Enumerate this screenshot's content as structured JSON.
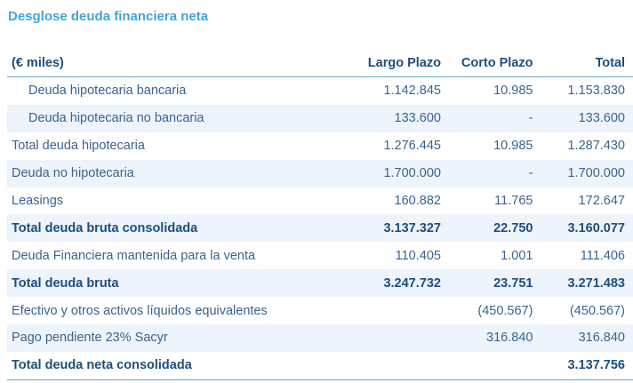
{
  "title": "Desglose deuda financiera neta",
  "headers": [
    "(€ miles)",
    "Largo Plazo",
    "Corto Plazo",
    "Total"
  ],
  "rows": [
    {
      "label": "Deuda hipotecaria bancaria",
      "lp": "1.142.845",
      "cp": "10.985",
      "total": "1.153.830"
    },
    {
      "label": "Deuda hipotecaria no bancaria",
      "lp": "133.600",
      "cp": "-",
      "total": "133.600"
    },
    {
      "label": "Total deuda hipotecaria",
      "lp": "1.276.445",
      "cp": "10.985",
      "total": "1.287.430"
    },
    {
      "label": "Deuda no hipotecaria",
      "lp": "1.700.000",
      "cp": "-",
      "total": "1.700.000"
    },
    {
      "label": "Leasings",
      "lp": "160.882",
      "cp": "11.765",
      "total": "172.647"
    },
    {
      "label": "Total deuda bruta consolidada",
      "lp": "3.137.327",
      "cp": "22.750",
      "total": "3.160.077"
    },
    {
      "label": "Deuda Financiera mantenida para la venta",
      "lp": "110.405",
      "cp": "1.001",
      "total": "111.406"
    },
    {
      "label": "Total deuda bruta",
      "lp": "3.247.732",
      "cp": "23.751",
      "total": "3.271.483"
    },
    {
      "label": "Efectivo y otros activos líquidos equivalentes",
      "lp": "",
      "cp": "(450.567)",
      "total": "(450.567)"
    },
    {
      "label": "Pago pendiente 23% Sacyr",
      "lp": "",
      "cp": "316.840",
      "total": "316.840"
    },
    {
      "label": "Total deuda neta consolidada",
      "lp": "",
      "cp": "",
      "total": "3.137.756"
    }
  ]
}
